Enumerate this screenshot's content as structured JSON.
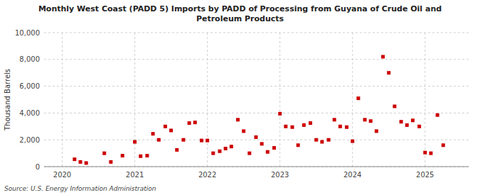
{
  "chart_data": {
    "type": "scatter",
    "title": "Monthly West Coast (PADD 5) Imports by PADD of Processing from Guyana of Crude Oil and\nPetroleum Products",
    "ylabel": "Thousand Barrels",
    "source": "Source: U.S. Energy Information Administration",
    "color": "#cc0000",
    "marker": "square",
    "grid": true,
    "xlim": [
      2019.75,
      2025.6
    ],
    "xticks": [
      2020,
      2021,
      2022,
      2023,
      2024,
      2025
    ],
    "ylim": [
      0,
      10000
    ],
    "yticks": [
      0,
      {
        "value": 2000,
        "label": "2,000"
      },
      {
        "value": 4000,
        "label": "4,000"
      },
      {
        "value": 6000,
        "label": "6,000"
      },
      {
        "value": 8000,
        "label": "8,000"
      },
      {
        "value": 10000,
        "label": "10,000"
      }
    ],
    "x": [
      2020.17,
      2020.25,
      2020.33,
      2020.58,
      2020.67,
      2020.83,
      2021.0,
      2021.08,
      2021.17,
      2021.25,
      2021.33,
      2021.42,
      2021.5,
      2021.58,
      2021.67,
      2021.75,
      2021.83,
      2021.92,
      2022.0,
      2022.08,
      2022.17,
      2022.25,
      2022.33,
      2022.42,
      2022.5,
      2022.58,
      2022.67,
      2022.75,
      2022.83,
      2022.92,
      2023.0,
      2023.08,
      2023.17,
      2023.25,
      2023.33,
      2023.42,
      2023.5,
      2023.58,
      2023.67,
      2023.75,
      2023.83,
      2023.92,
      2024.0,
      2024.08,
      2024.17,
      2024.25,
      2024.33,
      2024.42,
      2024.5,
      2024.58,
      2024.67,
      2024.75,
      2024.83,
      2024.92,
      2025.0,
      2025.08,
      2025.17,
      2025.25
    ],
    "values": [
      550,
      350,
      270,
      1000,
      350,
      820,
      1850,
      780,
      820,
      2450,
      2000,
      3000,
      2700,
      1250,
      2000,
      3250,
      3300,
      1950,
      1950,
      1000,
      1150,
      1350,
      1500,
      3500,
      2650,
      1000,
      2200,
      1700,
      1100,
      1400,
      3950,
      3000,
      2950,
      1600,
      3100,
      3250,
      2000,
      1850,
      2000,
      3500,
      3000,
      2950,
      1900,
      5100,
      3500,
      3400,
      2650,
      8200,
      7000,
      4500,
      3350,
      3100,
      3450,
      3000,
      1050,
      1000,
      3850,
      1600
    ]
  }
}
